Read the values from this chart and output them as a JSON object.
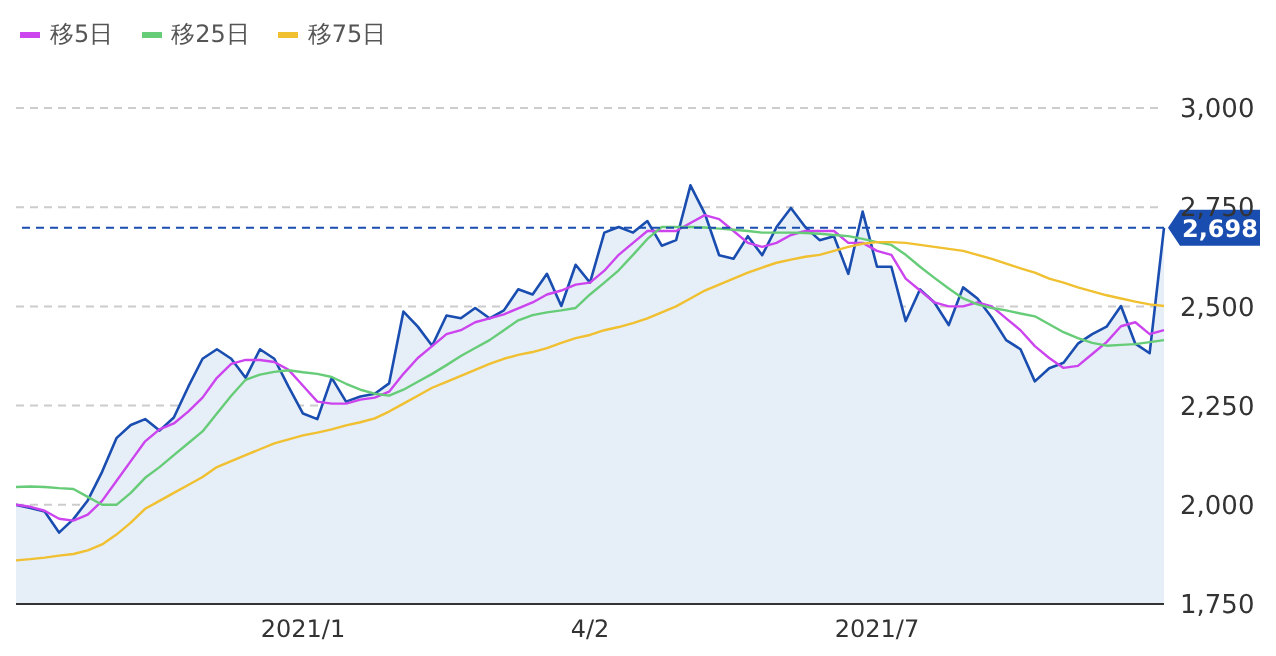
{
  "chart_data": {
    "type": "line",
    "categories": [
      null,
      null,
      null,
      null,
      null,
      null,
      null,
      null,
      null,
      null,
      null,
      null,
      null,
      null,
      null,
      null,
      null,
      null,
      null,
      null,
      "2021/1",
      null,
      null,
      null,
      null,
      null,
      null,
      null,
      null,
      null,
      null,
      null,
      null,
      null,
      null,
      null,
      null,
      null,
      null,
      null,
      "4/2",
      null,
      null,
      null,
      null,
      null,
      null,
      null,
      null,
      null,
      null,
      null,
      null,
      null,
      null,
      null,
      null,
      null,
      null,
      null,
      "2021/7",
      null,
      null,
      null,
      null,
      null,
      null,
      null,
      null,
      null,
      null,
      null,
      null,
      null,
      null,
      null,
      null,
      null,
      null,
      null,
      null
    ],
    "series": [
      {
        "type": "area",
        "color": "#1a4db0",
        "values": [
          2000,
          1992,
          1983,
          1930,
          1964,
          2011,
          2083,
          2168,
          2201,
          2216,
          2187,
          2220,
          2297,
          2368,
          2392,
          2368,
          2320,
          2392,
          2368,
          2297,
          2230,
          2216,
          2320,
          2260,
          2273,
          2280,
          2306,
          2487,
          2449,
          2401,
          2477,
          2470,
          2496,
          2470,
          2490,
          2543,
          2530,
          2582,
          2501,
          2605,
          2560,
          2686,
          2700,
          2686,
          2715,
          2653,
          2667,
          2805,
          2734,
          2629,
          2620,
          2677,
          2629,
          2700,
          2748,
          2700,
          2667,
          2677,
          2582,
          2739,
          2600,
          2600,
          2463,
          2543,
          2510,
          2453,
          2548,
          2520,
          2472,
          2415,
          2392,
          2311,
          2344,
          2358,
          2406,
          2430,
          2449,
          2501,
          2406,
          2382,
          2698
        ]
      },
      {
        "name": "移5日",
        "color": "#cc44ee",
        "values": [
          2000,
          1995,
          1985,
          1965,
          1960,
          1975,
          2010,
          2060,
          2110,
          2160,
          2190,
          2205,
          2235,
          2270,
          2320,
          2355,
          2365,
          2365,
          2360,
          2340,
          2300,
          2260,
          2255,
          2255,
          2265,
          2270,
          2285,
          2330,
          2370,
          2400,
          2430,
          2440,
          2460,
          2470,
          2480,
          2495,
          2510,
          2530,
          2540,
          2555,
          2560,
          2590,
          2630,
          2660,
          2690,
          2690,
          2690,
          2710,
          2730,
          2720,
          2690,
          2660,
          2650,
          2660,
          2680,
          2690,
          2690,
          2690,
          2660,
          2660,
          2640,
          2630,
          2570,
          2540,
          2510,
          2500,
          2500,
          2510,
          2500,
          2470,
          2440,
          2400,
          2370,
          2345,
          2350,
          2380,
          2410,
          2450,
          2460,
          2430,
          2440
        ]
      },
      {
        "name": "移25日",
        "color": "#66cc77",
        "values": [
          2045,
          2046,
          2045,
          2042,
          2040,
          2020,
          2000,
          2000,
          2030,
          2068,
          2095,
          2125,
          2155,
          2185,
          2230,
          2275,
          2315,
          2328,
          2335,
          2339,
          2334,
          2330,
          2322,
          2305,
          2290,
          2280,
          2275,
          2290,
          2310,
          2330,
          2352,
          2375,
          2395,
          2415,
          2440,
          2465,
          2478,
          2485,
          2490,
          2496,
          2530,
          2560,
          2591,
          2630,
          2670,
          2700,
          2700,
          2700,
          2699,
          2696,
          2693,
          2690,
          2686,
          2686,
          2686,
          2685,
          2683,
          2680,
          2677,
          2670,
          2662,
          2655,
          2630,
          2600,
          2572,
          2545,
          2520,
          2505,
          2496,
          2490,
          2482,
          2475,
          2455,
          2435,
          2420,
          2408,
          2401,
          2403,
          2405,
          2410,
          2415
        ]
      },
      {
        "name": "移75日",
        "color": "#f0c030",
        "values": [
          1860,
          1863,
          1867,
          1872,
          1876,
          1885,
          1900,
          1925,
          1955,
          1990,
          2010,
          2030,
          2050,
          2070,
          2095,
          2110,
          2125,
          2140,
          2155,
          2165,
          2175,
          2182,
          2190,
          2200,
          2208,
          2218,
          2235,
          2255,
          2275,
          2295,
          2310,
          2325,
          2340,
          2355,
          2368,
          2378,
          2385,
          2395,
          2408,
          2420,
          2428,
          2440,
          2448,
          2458,
          2470,
          2485,
          2500,
          2520,
          2540,
          2555,
          2570,
          2585,
          2598,
          2610,
          2618,
          2625,
          2630,
          2640,
          2650,
          2658,
          2662,
          2662,
          2660,
          2655,
          2650,
          2645,
          2640,
          2630,
          2620,
          2608,
          2596,
          2585,
          2570,
          2560,
          2548,
          2538,
          2528,
          2520,
          2512,
          2505,
          2501
        ]
      }
    ],
    "ylim": [
      1750,
      3000
    ],
    "yticks": [
      {
        "value": 1750,
        "label": "1,750"
      },
      {
        "value": 2000,
        "label": "2,000"
      },
      {
        "value": 2250,
        "label": "2,250"
      },
      {
        "value": 2500,
        "label": "2,500"
      },
      {
        "value": 2750,
        "label": "2,750"
      },
      {
        "value": 3000,
        "label": "3,000"
      }
    ],
    "grid": "y",
    "legend": "top left",
    "ref_lines": [
      {
        "axis": "y",
        "value": 2698,
        "label": "2,698",
        "color": "#1a4db0",
        "line_style": "dashed"
      }
    ]
  }
}
